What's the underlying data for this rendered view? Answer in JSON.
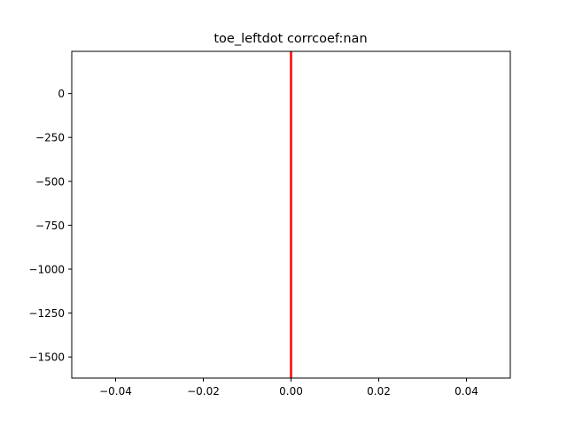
{
  "chart_data": {
    "type": "line",
    "title": "toe_leftdot corrcoef:nan",
    "xlabel": "",
    "ylabel": "",
    "xlim": [
      -0.05,
      0.05
    ],
    "ylim": [
      -1620,
      240
    ],
    "x_ticks": [
      -0.04,
      -0.02,
      0.0,
      0.02,
      0.04
    ],
    "x_tick_labels": [
      "−0.04",
      "−0.02",
      "0.00",
      "0.02",
      "0.04"
    ],
    "y_ticks": [
      0,
      -250,
      -500,
      -750,
      -1000,
      -1250,
      -1500
    ],
    "y_tick_labels": [
      "0",
      "−250",
      "−500",
      "−750",
      "−1000",
      "−1250",
      "−1500"
    ],
    "grid": false,
    "series": [
      {
        "color": "#ff0000",
        "x": [
          0,
          0
        ],
        "y": [
          -1620,
          240
        ]
      }
    ]
  }
}
